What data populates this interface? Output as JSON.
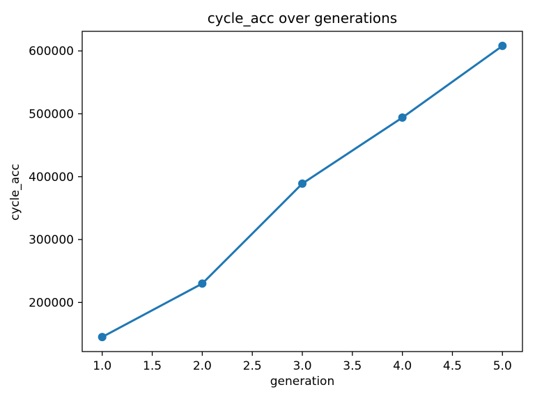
{
  "chart_data": {
    "type": "line",
    "title": "cycle_acc over generations",
    "xlabel": "generation",
    "ylabel": "cycle_acc",
    "series": [
      {
        "name": "cycle_acc",
        "x": [
          1,
          2,
          3,
          4,
          5
        ],
        "y": [
          145000,
          230000,
          389000,
          494000,
          608000
        ]
      }
    ],
    "xlim": [
      0.8,
      5.2
    ],
    "ylim": [
      121850,
      631150
    ],
    "xtick_values": [
      1.0,
      1.5,
      2.0,
      2.5,
      3.0,
      3.5,
      4.0,
      4.5,
      5.0
    ],
    "xtick_labels": [
      "1.0",
      "1.5",
      "2.0",
      "2.5",
      "3.0",
      "3.5",
      "4.0",
      "4.5",
      "5.0"
    ],
    "ytick_values": [
      200000,
      300000,
      400000,
      500000,
      600000
    ],
    "ytick_labels": [
      "200000",
      "300000",
      "400000",
      "500000",
      "600000"
    ],
    "line_color": "#1f77b4",
    "marker": "o",
    "marker_radius": 6,
    "line_width": 3,
    "grid": false,
    "legend": null,
    "text_color": "#000000",
    "spine_color": "#000000",
    "background_color": "#ffffff"
  }
}
